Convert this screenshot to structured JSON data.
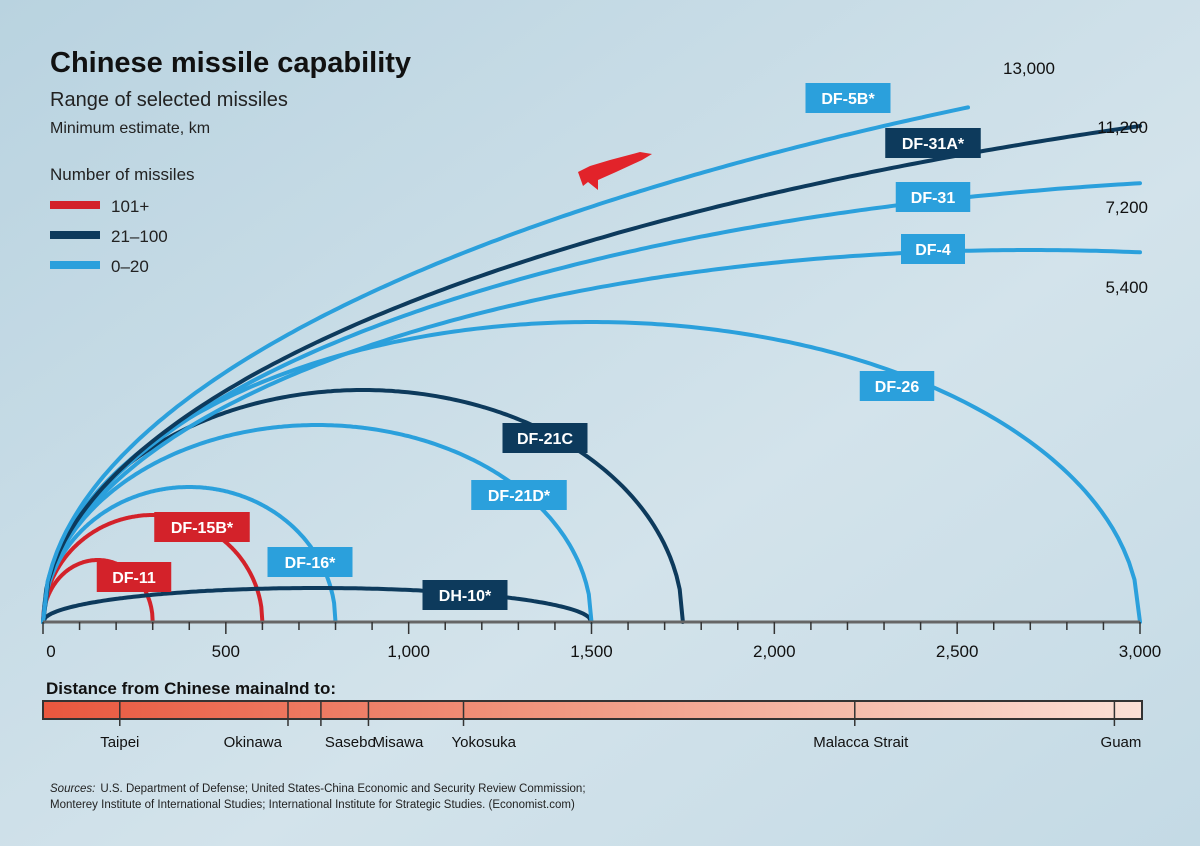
{
  "chart_data": {
    "type": "line",
    "title": "Chinese missile capability",
    "subtitle": "Range of selected missiles",
    "unit_note": "Minimum estimate, km",
    "legend_title": "Number of missiles",
    "legend": [
      {
        "label": "101+",
        "color": "#d3222a"
      },
      {
        "label": "21–100",
        "color": "#0d3a5c"
      },
      {
        "label": "0–20",
        "color": "#2ba0dc"
      }
    ],
    "legend_placement": "top-left",
    "xlim": [
      0,
      3000
    ],
    "x_ticks": [
      "0",
      "500",
      "1,000",
      "1,500",
      "2,000",
      "2,500",
      "3,000"
    ],
    "x_tick_values": [
      0,
      500,
      1000,
      1500,
      2000,
      2500,
      3000
    ],
    "series": [
      {
        "name": "DF-11",
        "range_km": 300,
        "group": "101+",
        "color": "#d3222a"
      },
      {
        "name": "DF-15B*",
        "range_km": 600,
        "group": "101+",
        "color": "#d3222a"
      },
      {
        "name": "DF-16*",
        "range_km": 800,
        "group": "0–20",
        "color": "#2ba0dc"
      },
      {
        "name": "DH-10*",
        "range_km": 1500,
        "group": "21–100",
        "color": "#0d3a5c"
      },
      {
        "name": "DF-21D*",
        "range_km": 1500,
        "group": "0–20",
        "color": "#2ba0dc"
      },
      {
        "name": "DF-21C",
        "range_km": 1750,
        "group": "21–100",
        "color": "#0d3a5c"
      },
      {
        "name": "DF-26",
        "range_km": 3000,
        "group": "0–20",
        "color": "#2ba0dc"
      },
      {
        "name": "DF-4",
        "range_km": 5400,
        "group": "0–20",
        "color": "#2ba0dc",
        "end_label": "5,400"
      },
      {
        "name": "DF-31",
        "range_km": 7200,
        "group": "0–20",
        "color": "#2ba0dc",
        "end_label": "7,200"
      },
      {
        "name": "DF-31A*",
        "range_km": 11200,
        "group": "21–100",
        "color": "#0d3a5c",
        "end_label": "11,200"
      },
      {
        "name": "DF-5B*",
        "range_km": 13000,
        "group": "0–20",
        "color": "#2ba0dc",
        "end_label": "13,000"
      }
    ],
    "distance_title": "Distance from Chinese mainalnd to:",
    "distances": [
      {
        "place": "Taipei",
        "km": 210
      },
      {
        "place": "Okinawa",
        "km": 670
      },
      {
        "place": "Sasebo",
        "km": 760
      },
      {
        "place": "Misawa",
        "km": 890
      },
      {
        "place": "Yokosuka",
        "km": 1150
      },
      {
        "place": "Malacca Strait",
        "km": 2220
      },
      {
        "place": "Guam",
        "km": 2930
      }
    ]
  },
  "sources_label": "Sources:",
  "sources_line1": "U.S. Department of Defense; United States-China Economic and Security Review Commission;",
  "sources_line2": "Monterey Institute of International Studies; International Institute for Strategic Studies. (Economist.com)"
}
